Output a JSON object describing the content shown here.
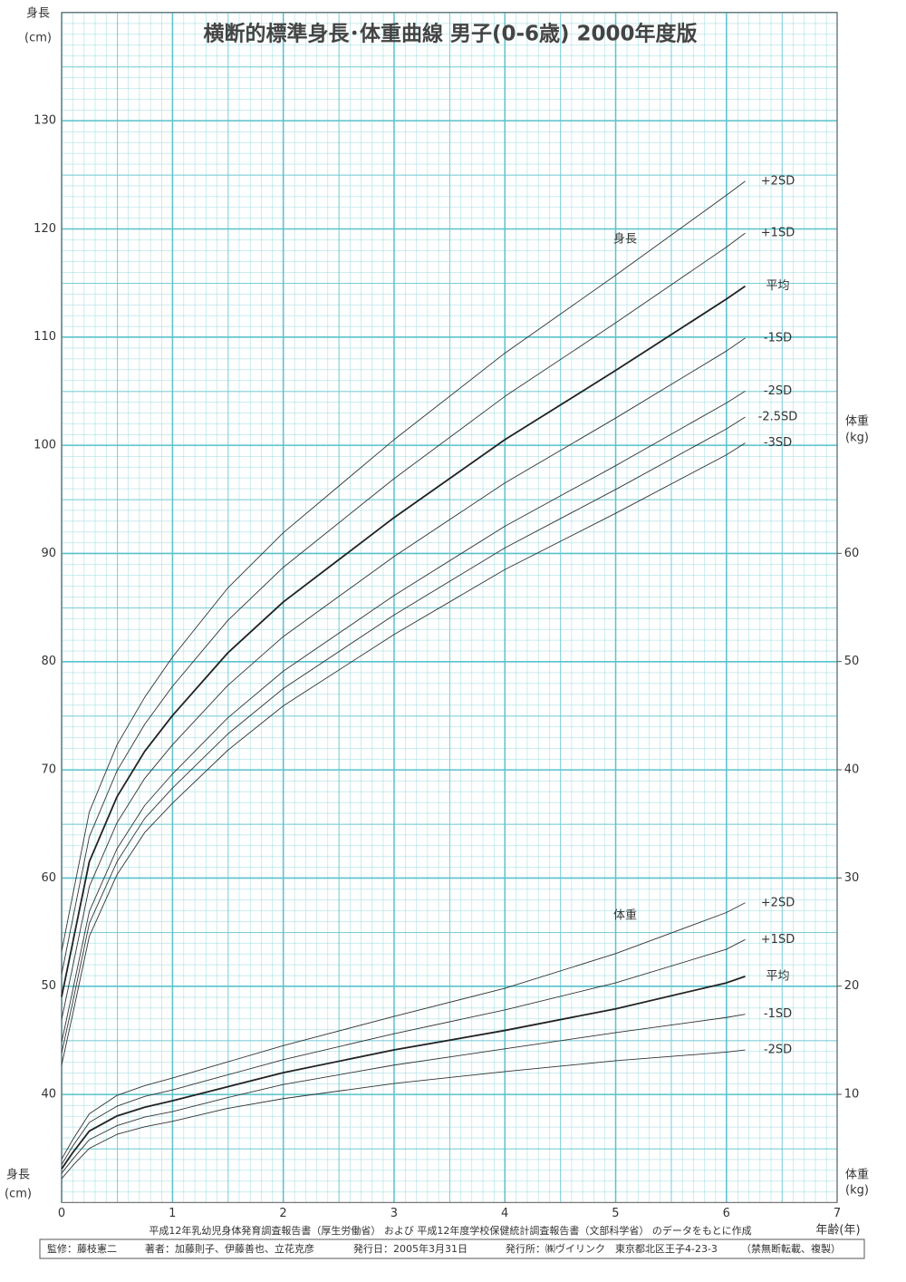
{
  "chart_data": {
    "type": "line",
    "title": "横断的標準身長･体重曲線 男子(0-6歳) 2000年度版",
    "x_label": "年齢(年)",
    "y_label": "身長",
    "y_unit": "(cm)",
    "y2_label": "体重",
    "y2_unit": "(kg)",
    "annotations": [
      "身長",
      "体重"
    ],
    "xlim": [
      0,
      7
    ],
    "xticks": [
      0,
      1,
      2,
      3,
      4,
      5,
      6,
      7
    ],
    "ylim": [
      30,
      140
    ],
    "yticks": [
      40,
      50,
      60,
      70,
      80,
      90,
      100,
      110,
      120,
      130
    ],
    "y2lim": [
      0,
      110
    ],
    "y2ticks": [
      10,
      20,
      30,
      40,
      50,
      60
    ],
    "grid": true,
    "grid_color": "#5bc3cc",
    "x": [
      0,
      0.1,
      0.25,
      0.5,
      0.75,
      1,
      1.5,
      2,
      3,
      4,
      5,
      6,
      6.17
    ],
    "series": [
      {
        "name": "+2SD",
        "color": "#333",
        "width": 0.9,
        "values": [
          53.2,
          58.4,
          66.1,
          72.3,
          76.7,
          80.4,
          86.8,
          91.9,
          100.5,
          108.5,
          115.7,
          123.1,
          124.4
        ]
      },
      {
        "name": "+1SD",
        "color": "#333",
        "width": 0.9,
        "values": [
          51.1,
          56.2,
          63.8,
          69.9,
          74.2,
          77.7,
          83.8,
          88.7,
          96.9,
          104.5,
          111.3,
          118.3,
          119.6
        ]
      },
      {
        "name": "平均",
        "color": "#222",
        "width": 1.8,
        "values": [
          49.0,
          54.0,
          61.5,
          67.5,
          71.7,
          75.0,
          80.8,
          85.5,
          93.3,
          100.5,
          106.9,
          113.5,
          114.7
        ]
      },
      {
        "name": "-1SD",
        "color": "#333",
        "width": 0.9,
        "values": [
          46.9,
          51.8,
          59.2,
          65.1,
          69.2,
          72.3,
          77.8,
          82.3,
          89.7,
          96.5,
          102.5,
          108.7,
          109.9
        ]
      },
      {
        "name": "-2SD",
        "color": "#333",
        "width": 0.9,
        "values": [
          44.8,
          49.6,
          56.9,
          62.7,
          66.7,
          69.6,
          74.8,
          79.1,
          86.1,
          92.5,
          98.1,
          103.9,
          105.0
        ]
      },
      {
        "name": "-2.5SD",
        "color": "#333",
        "width": 0.9,
        "values": [
          43.8,
          48.5,
          55.8,
          61.5,
          65.5,
          68.3,
          73.3,
          77.5,
          84.3,
          90.5,
          95.9,
          101.5,
          102.6
        ]
      },
      {
        "name": "-3SD",
        "color": "#333",
        "width": 0.9,
        "values": [
          42.7,
          47.4,
          54.6,
          60.3,
          64.2,
          66.9,
          71.8,
          75.9,
          82.5,
          88.5,
          93.7,
          99.1,
          100.2
        ]
      },
      {
        "name": "+2SD",
        "color": "#333",
        "width": 0.9,
        "axis": "y2",
        "values": [
          4.0,
          5.8,
          8.2,
          9.9,
          10.8,
          11.5,
          13.0,
          14.5,
          17.2,
          19.8,
          23.0,
          26.8,
          27.7
        ]
      },
      {
        "name": "+1SD",
        "color": "#333",
        "width": 0.9,
        "axis": "y2",
        "values": [
          3.5,
          5.2,
          7.4,
          8.9,
          9.8,
          10.4,
          11.8,
          13.2,
          15.6,
          17.8,
          20.3,
          23.4,
          24.3
        ]
      },
      {
        "name": "平均",
        "color": "#222",
        "width": 1.8,
        "axis": "y2",
        "values": [
          3.1,
          4.6,
          6.6,
          8.0,
          8.8,
          9.4,
          10.7,
          12.0,
          14.1,
          15.9,
          17.9,
          20.3,
          20.9
        ]
      },
      {
        "name": "-1SD",
        "color": "#333",
        "width": 0.9,
        "axis": "y2",
        "values": [
          2.7,
          4.0,
          5.8,
          7.1,
          7.9,
          8.4,
          9.7,
          10.9,
          12.7,
          14.2,
          15.7,
          17.1,
          17.4
        ]
      },
      {
        "name": "-2SD",
        "color": "#333",
        "width": 0.9,
        "axis": "y2",
        "values": [
          2.2,
          3.4,
          5.0,
          6.3,
          7.0,
          7.5,
          8.7,
          9.6,
          11.0,
          12.1,
          13.1,
          13.9,
          14.1
        ]
      }
    ]
  },
  "footer": {
    "source": "平成12年乳幼児身体発育調査報告書（厚生労働省） および 平成12年度学校保健統計調査報告書（文部科学省） のデータをもとに作成",
    "credits": [
      "監修：藤枝憲二",
      "著者：加藤則子、伊藤善也、立花克彦",
      "発行日：2005年3月31日",
      "発行所：㈱ヴイリンク　東京都北区王子4-23-3",
      "（禁無断転載、複製）"
    ]
  }
}
